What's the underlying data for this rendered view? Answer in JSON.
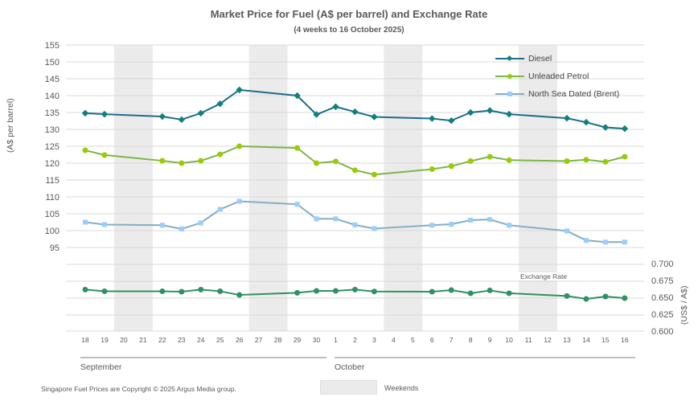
{
  "title": "Market Price for Fuel (A$ per barrel) and Exchange Rate",
  "subtitle": "(4 weeks to 16 October 2025)",
  "copyright": "Singapore Fuel Prices are Copyright © 2025 Argus Media group.",
  "weekend_legend_label": "Weekends",
  "chart_data": [
    {
      "type": "line",
      "title": "Market Price for Fuel (A$ per barrel)",
      "ylabel": "(A$ per barrel)",
      "ylim": [
        95,
        155
      ],
      "yticks": [
        "95",
        "100",
        "105",
        "110",
        "115",
        "120",
        "125",
        "130",
        "135",
        "140",
        "145",
        "150",
        "155"
      ],
      "grid": true,
      "legend": "top-right",
      "categories": [
        "18",
        "19",
        "20",
        "21",
        "22",
        "23",
        "24",
        "25",
        "26",
        "27",
        "28",
        "29",
        "30",
        "1",
        "2",
        "3",
        "4",
        "5",
        "6",
        "7",
        "8",
        "9",
        "10",
        "11",
        "12",
        "13",
        "14",
        "15",
        "16"
      ],
      "month_groups": [
        {
          "label": "September",
          "from": "18",
          "to": "30"
        },
        {
          "label": "October",
          "from": "1",
          "to": "16"
        }
      ],
      "weekends": [
        [
          "20",
          "21"
        ],
        [
          "27",
          "28"
        ],
        [
          "4",
          "5"
        ],
        [
          "11",
          "12"
        ]
      ],
      "series": [
        {
          "name": "Diesel",
          "color": "#1f6d86",
          "marker_color": "#0f8080",
          "marker": "diamond",
          "values": [
            134.8,
            134.5,
            null,
            null,
            133.8,
            132.9,
            134.8,
            137.6,
            141.7,
            null,
            null,
            140.0,
            134.4,
            136.7,
            135.2,
            133.7,
            null,
            null,
            133.2,
            132.6,
            135.0,
            135.6,
            134.5,
            null,
            null,
            133.3,
            132.1,
            130.6,
            130.2
          ]
        },
        {
          "name": "Unleaded Petrol",
          "color": "#7ab648",
          "marker_color": "#99cc00",
          "marker": "circle",
          "values": [
            123.8,
            122.4,
            null,
            null,
            120.7,
            120.0,
            120.7,
            122.6,
            125.0,
            null,
            null,
            124.5,
            120.0,
            120.5,
            117.9,
            116.6,
            null,
            null,
            118.2,
            119.1,
            120.6,
            121.9,
            120.9,
            null,
            null,
            120.6,
            121.0,
            120.4,
            121.9
          ]
        },
        {
          "name": "North Sea Dated (Brent)",
          "color": "#86aec0",
          "marker_color": "#99ccff",
          "marker": "square",
          "values": [
            102.5,
            101.8,
            null,
            null,
            101.6,
            100.5,
            102.3,
            106.3,
            108.7,
            null,
            null,
            107.8,
            103.5,
            103.5,
            101.7,
            100.6,
            null,
            null,
            101.6,
            101.9,
            103.1,
            103.3,
            101.6,
            null,
            null,
            99.9,
            97.1,
            96.6,
            96.6
          ]
        }
      ]
    },
    {
      "type": "line",
      "title": "Exchange Rate",
      "ylabel": "(US$ / A$)",
      "ylim": [
        0.6,
        0.7
      ],
      "yticks": [
        "0.600",
        "0.625",
        "0.650",
        "0.675",
        "0.700"
      ],
      "grid": true,
      "categories": [
        "18",
        "19",
        "20",
        "21",
        "22",
        "23",
        "24",
        "25",
        "26",
        "27",
        "28",
        "29",
        "30",
        "1",
        "2",
        "3",
        "4",
        "5",
        "6",
        "7",
        "8",
        "9",
        "10",
        "11",
        "12",
        "13",
        "14",
        "15",
        "16"
      ],
      "series": [
        {
          "name": "Exchange Rate",
          "color": "#2e9162",
          "marker": "circle",
          "values": [
            0.6614,
            0.659,
            null,
            null,
            0.659,
            0.6583,
            0.6614,
            0.659,
            0.6535,
            null,
            null,
            0.6567,
            0.6595,
            0.6595,
            0.6614,
            0.6587,
            null,
            null,
            0.6583,
            0.6607,
            0.656,
            0.6602,
            0.656,
            null,
            null,
            0.652,
            0.6476,
            0.6512,
            0.6488
          ]
        }
      ]
    }
  ]
}
